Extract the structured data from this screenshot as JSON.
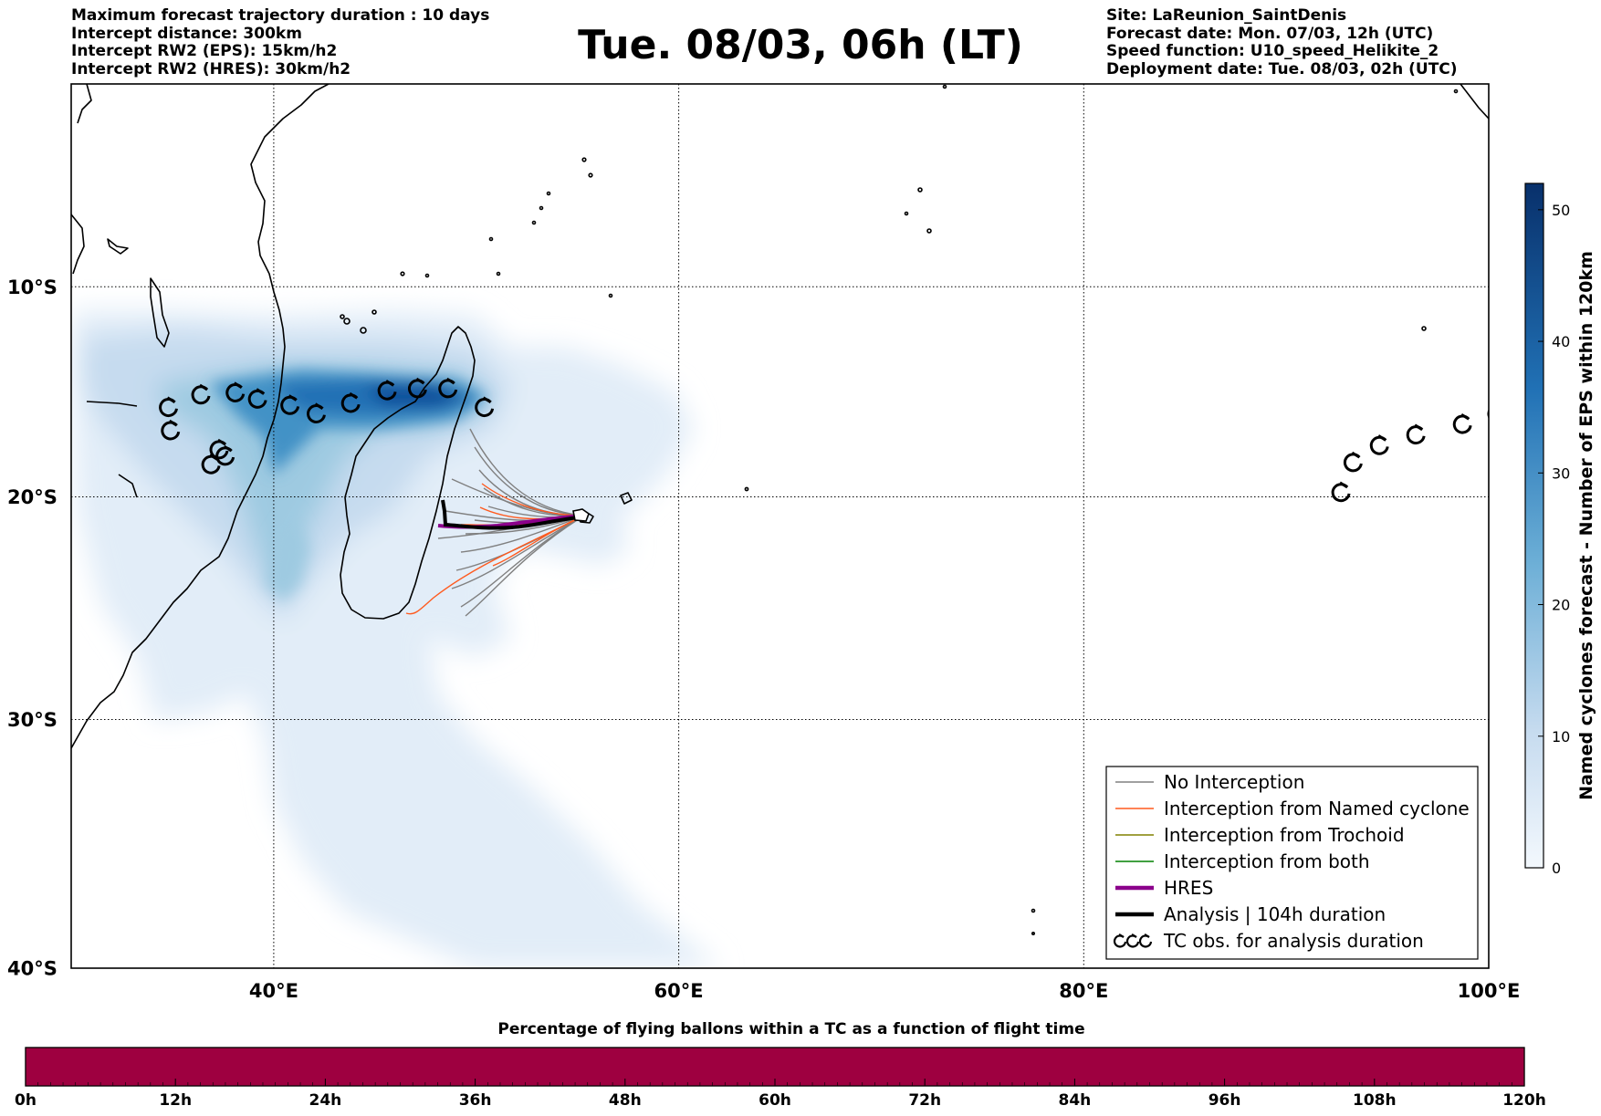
{
  "header": {
    "left": [
      "Maximum forecast trajectory duration : 10 days",
      "Intercept distance: 300km",
      "Intercept RW2 (EPS):  15km/h2",
      "Intercept RW2 (HRES): 30km/h2"
    ],
    "title": "Tue. 08/03, 06h (LT)",
    "right": [
      "Site: LaReunion_SaintDenis",
      "Forecast date: Mon. 07/03, 12h (UTC)",
      "Speed function: U10_speed_Helikite_2",
      "Deployment date: Tue. 08/03, 02h (UTC)"
    ]
  },
  "map": {
    "lon_range": [
      30,
      100
    ],
    "lat_range": [
      -40,
      0
    ],
    "lon_ticks": [
      {
        "value": 40,
        "label": "40°E"
      },
      {
        "value": 60,
        "label": "60°E"
      },
      {
        "value": 80,
        "label": "80°E"
      },
      {
        "value": 100,
        "label": "100°E"
      }
    ],
    "lat_ticks": [
      {
        "value": -10,
        "label": "10°S"
      },
      {
        "value": -20,
        "label": "20°S"
      },
      {
        "value": -30,
        "label": "30°S"
      },
      {
        "value": -40,
        "label": "40°S"
      }
    ],
    "grid": true,
    "site": {
      "lon": 55.45,
      "lat": -20.9
    },
    "tc_obs_track_west": [
      [
        34.8,
        -15.8
      ],
      [
        36.4,
        -15.2
      ],
      [
        38.1,
        -15.1
      ],
      [
        39.2,
        -15.4
      ],
      [
        40.8,
        -15.7
      ],
      [
        42.1,
        -16.1
      ],
      [
        43.8,
        -15.6
      ],
      [
        45.6,
        -15.0
      ],
      [
        47.1,
        -14.9
      ],
      [
        48.6,
        -14.9
      ],
      [
        50.4,
        -15.8
      ],
      [
        34.9,
        -16.9
      ],
      [
        37.3,
        -17.8
      ],
      [
        37.6,
        -18.1
      ],
      [
        36.9,
        -18.5
      ]
    ],
    "tc_obs_track_east": [
      [
        92.7,
        -19.8
      ],
      [
        93.3,
        -18.4
      ],
      [
        94.6,
        -17.6
      ],
      [
        96.4,
        -17.1
      ],
      [
        98.7,
        -16.6
      ],
      [
        100.4,
        -16.1
      ]
    ]
  },
  "colorbar": {
    "label": "Named cyclones forecast - Number of EPS within 120km",
    "ticks": [
      "0",
      "10",
      "20",
      "30",
      "40",
      "50"
    ],
    "min": 0,
    "max": 52,
    "color_low": "#e3edf8",
    "color_high": "#08306b"
  },
  "legend": [
    {
      "label": "No Interception",
      "color": "#808080",
      "style": "thin"
    },
    {
      "label": "Interception from Named cyclone",
      "color": "#ff5a1e",
      "style": "thin"
    },
    {
      "label": "Interception from Trochoid",
      "color": "#808000",
      "style": "thin"
    },
    {
      "label": "Interception from both",
      "color": "#008000",
      "style": "thin"
    },
    {
      "label": "HRES",
      "color": "#8b008b",
      "style": "thick"
    },
    {
      "label": "Analysis | 104h duration",
      "color": "#000000",
      "style": "thick"
    },
    {
      "label": "TC obs. for analysis duration",
      "color": "#000000",
      "style": "tc"
    }
  ],
  "bottom_bar": {
    "title": "Percentage of flying ballons within a TC as a function of flight time",
    "ticks": [
      "0h",
      "12h",
      "24h",
      "36h",
      "48h",
      "60h",
      "72h",
      "84h",
      "96h",
      "108h",
      "120h"
    ],
    "fill_color": "#9e0040",
    "fill_fraction": 1.0
  },
  "chart_data": {
    "type": "heatmap",
    "title": "Tue. 08/03, 06h (LT)",
    "xlabel": "",
    "ylabel": "",
    "xlim": [
      30,
      100
    ],
    "ylim": [
      -40,
      0
    ],
    "colorbar_label": "Named cyclones forecast - Number of EPS within 120km",
    "colorbar_range": [
      0,
      52
    ]
  }
}
